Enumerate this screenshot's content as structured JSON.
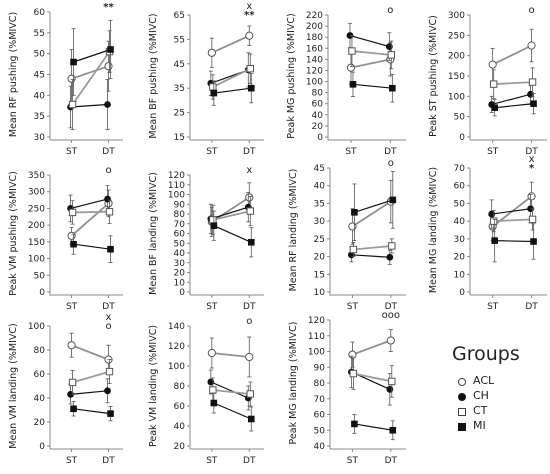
{
  "legend": {
    "title": "Groups",
    "items": [
      {
        "label": "ACL",
        "marker": "circle-open"
      },
      {
        "label": "CH",
        "marker": "circle-filled"
      },
      {
        "label": "CT",
        "marker": "square-open"
      },
      {
        "label": "MI",
        "marker": "square-filled"
      }
    ]
  },
  "colors": {
    "ACL": "#8f8f8f",
    "CH": "#111111",
    "CT": "#9a9a9a",
    "MI": "#111111",
    "errorbar": "#555555",
    "axis": "#888888"
  },
  "chart_data": [
    {
      "type": "line",
      "ylabel": "Mean RF pushing (%MIVC)",
      "categories": [
        "ST",
        "DT"
      ],
      "yticks": [
        30,
        35,
        40,
        45,
        50,
        55,
        60
      ],
      "ylim": [
        30,
        60
      ],
      "annotation": "**",
      "series": [
        {
          "name": "ACL",
          "values": [
            44,
            47
          ],
          "err": [
            7,
            6
          ]
        },
        {
          "name": "CH",
          "values": [
            37.2,
            37.8
          ],
          "err": [
            5,
            6
          ]
        },
        {
          "name": "CT",
          "values": [
            37.8,
            50.5
          ],
          "err": [
            6,
            5
          ]
        },
        {
          "name": "MI",
          "values": [
            48,
            51
          ],
          "err": [
            8,
            7
          ]
        }
      ]
    },
    {
      "type": "line",
      "ylabel": "Mean BF pushing (%MIVC)",
      "categories": [
        "ST",
        "DT"
      ],
      "yticks": [
        15,
        25,
        35,
        45,
        55,
        65
      ],
      "ylim": [
        15,
        65
      ],
      "annotation": "x\n**",
      "series": [
        {
          "name": "ACL",
          "values": [
            49.5,
            56.5
          ],
          "err": [
            6,
            4
          ]
        },
        {
          "name": "CH",
          "values": [
            37,
            42.5
          ],
          "err": [
            5,
            7
          ]
        },
        {
          "name": "CT",
          "values": [
            35.5,
            43
          ],
          "err": [
            5,
            6
          ]
        },
        {
          "name": "MI",
          "values": [
            33,
            35
          ],
          "err": [
            5,
            6
          ]
        }
      ]
    },
    {
      "type": "line",
      "ylabel": "Peak MG pushing (%MIVC)",
      "categories": [
        "ST",
        "DT"
      ],
      "yticks": [
        0,
        20,
        40,
        60,
        80,
        100,
        120,
        140,
        160,
        180,
        200,
        220
      ],
      "ylim": [
        0,
        220
      ],
      "annotation": "o",
      "series": [
        {
          "name": "ACL",
          "values": [
            125,
            140
          ],
          "err": [
            30,
            30
          ]
        },
        {
          "name": "CH",
          "values": [
            183,
            163
          ],
          "err": [
            22,
            25
          ]
        },
        {
          "name": "CT",
          "values": [
            155,
            148
          ],
          "err": [
            28,
            25
          ]
        },
        {
          "name": "MI",
          "values": [
            95,
            88
          ],
          "err": [
            22,
            25
          ]
        }
      ]
    },
    {
      "type": "line",
      "ylabel": "Peak ST pushing (%MIVC)",
      "categories": [
        "ST",
        "DT"
      ],
      "yticks": [
        0,
        50,
        100,
        150,
        200,
        250,
        300
      ],
      "ylim": [
        0,
        300
      ],
      "annotation": "o",
      "series": [
        {
          "name": "ACL",
          "values": [
            178,
            225
          ],
          "err": [
            40,
            40
          ]
        },
        {
          "name": "CH",
          "values": [
            80,
            105
          ],
          "err": [
            20,
            25
          ]
        },
        {
          "name": "CT",
          "values": [
            130,
            135
          ],
          "err": [
            35,
            35
          ]
        },
        {
          "name": "MI",
          "values": [
            72,
            82
          ],
          "err": [
            20,
            25
          ]
        }
      ]
    },
    {
      "type": "line",
      "ylabel": "Peak VM pushing (%MIVC)",
      "categories": [
        "ST",
        "DT"
      ],
      "yticks": [
        0,
        50,
        100,
        150,
        200,
        250,
        300,
        350
      ],
      "ylim": [
        0,
        350
      ],
      "annotation": "o",
      "series": [
        {
          "name": "ACL",
          "values": [
            168,
            265
          ],
          "err": [
            25,
            40
          ]
        },
        {
          "name": "CH",
          "values": [
            250,
            278
          ],
          "err": [
            40,
            40
          ]
        },
        {
          "name": "CT",
          "values": [
            238,
            240
          ],
          "err": [
            35,
            35
          ]
        },
        {
          "name": "MI",
          "values": [
            143,
            128
          ],
          "err": [
            30,
            40
          ]
        }
      ]
    },
    {
      "type": "line",
      "ylabel": "Mean BF landing (%MIVC)",
      "categories": [
        "ST",
        "DT"
      ],
      "yticks": [
        0,
        10,
        20,
        30,
        40,
        50,
        60,
        70,
        80,
        90,
        100,
        110,
        120
      ],
      "ylim": [
        0,
        120
      ],
      "annotation": "x",
      "series": [
        {
          "name": "ACL",
          "values": [
            72,
            97
          ],
          "err": [
            15,
            15
          ]
        },
        {
          "name": "CH",
          "values": [
            75,
            87
          ],
          "err": [
            15,
            15
          ]
        },
        {
          "name": "CT",
          "values": [
            74,
            83
          ],
          "err": [
            15,
            15
          ]
        },
        {
          "name": "MI",
          "values": [
            68,
            51
          ],
          "err": [
            15,
            15
          ]
        }
      ]
    },
    {
      "type": "line",
      "ylabel": "Mean RF landing (%MIVC)",
      "categories": [
        "ST",
        "DT"
      ],
      "yticks": [
        10,
        15,
        20,
        25,
        30,
        35,
        40,
        45
      ],
      "ylim": [
        10,
        45
      ],
      "annotation": "o",
      "series": [
        {
          "name": "ACL",
          "values": [
            28.5,
            35.5
          ],
          "err": [
            5,
            6
          ]
        },
        {
          "name": "CH",
          "values": [
            20.5,
            19.8
          ],
          "err": [
            2,
            2
          ]
        },
        {
          "name": "CT",
          "values": [
            22,
            23
          ],
          "err": [
            2,
            2
          ]
        },
        {
          "name": "MI",
          "values": [
            32.5,
            36
          ],
          "err": [
            8,
            8
          ]
        }
      ]
    },
    {
      "type": "line",
      "ylabel": "Mean MG landing (%MIVC)",
      "categories": [
        "ST",
        "DT"
      ],
      "yticks": [
        0,
        10,
        20,
        30,
        40,
        50,
        60,
        70
      ],
      "ylim": [
        0,
        70
      ],
      "annotation": "x\n*",
      "series": [
        {
          "name": "ACL",
          "values": [
            37,
            54
          ],
          "err": [
            8,
            8
          ]
        },
        {
          "name": "CH",
          "values": [
            44,
            47
          ],
          "err": [
            8,
            8
          ]
        },
        {
          "name": "CT",
          "values": [
            40,
            41
          ],
          "err": [
            6,
            6
          ]
        },
        {
          "name": "MI",
          "values": [
            29,
            28.5
          ],
          "err": [
            12,
            10
          ]
        }
      ]
    },
    {
      "type": "line",
      "ylabel": "Mean VM landing (%MIVC)",
      "categories": [
        "ST",
        "DT"
      ],
      "yticks": [
        0,
        20,
        40,
        60,
        80,
        100
      ],
      "ylim": [
        0,
        100
      ],
      "annotation": "x\no",
      "series": [
        {
          "name": "ACL",
          "values": [
            84,
            72
          ],
          "err": [
            10,
            12
          ]
        },
        {
          "name": "CH",
          "values": [
            43,
            46
          ],
          "err": [
            8,
            10
          ]
        },
        {
          "name": "CT",
          "values": [
            53,
            62
          ],
          "err": [
            10,
            10
          ]
        },
        {
          "name": "MI",
          "values": [
            31,
            27
          ],
          "err": [
            6,
            6
          ]
        }
      ]
    },
    {
      "type": "line",
      "ylabel": "Peak VM landing (%MIVC)",
      "categories": [
        "ST",
        "DT"
      ],
      "yticks": [
        20,
        40,
        60,
        80,
        100,
        120,
        140
      ],
      "ylim": [
        20,
        140
      ],
      "annotation": "o",
      "series": [
        {
          "name": "ACL",
          "values": [
            113,
            109
          ],
          "err": [
            15,
            20
          ]
        },
        {
          "name": "CH",
          "values": [
            84,
            68
          ],
          "err": [
            12,
            12
          ]
        },
        {
          "name": "CT",
          "values": [
            76,
            72
          ],
          "err": [
            12,
            12
          ]
        },
        {
          "name": "MI",
          "values": [
            63,
            47
          ],
          "err": [
            10,
            12
          ]
        }
      ]
    },
    {
      "type": "line",
      "ylabel": "Peak MG landing (%MIVC)",
      "categories": [
        "ST",
        "DT"
      ],
      "yticks": [
        40,
        50,
        60,
        70,
        80,
        90,
        100,
        110,
        120
      ],
      "ylim": [
        40,
        120
      ],
      "annotation": "ooo",
      "series": [
        {
          "name": "ACL",
          "values": [
            98,
            107
          ],
          "err": [
            8,
            7
          ]
        },
        {
          "name": "CH",
          "values": [
            87,
            76
          ],
          "err": [
            10,
            10
          ]
        },
        {
          "name": "CT",
          "values": [
            86,
            81
          ],
          "err": [
            10,
            10
          ]
        },
        {
          "name": "MI",
          "values": [
            54,
            50
          ],
          "err": [
            6,
            6
          ]
        }
      ]
    }
  ]
}
